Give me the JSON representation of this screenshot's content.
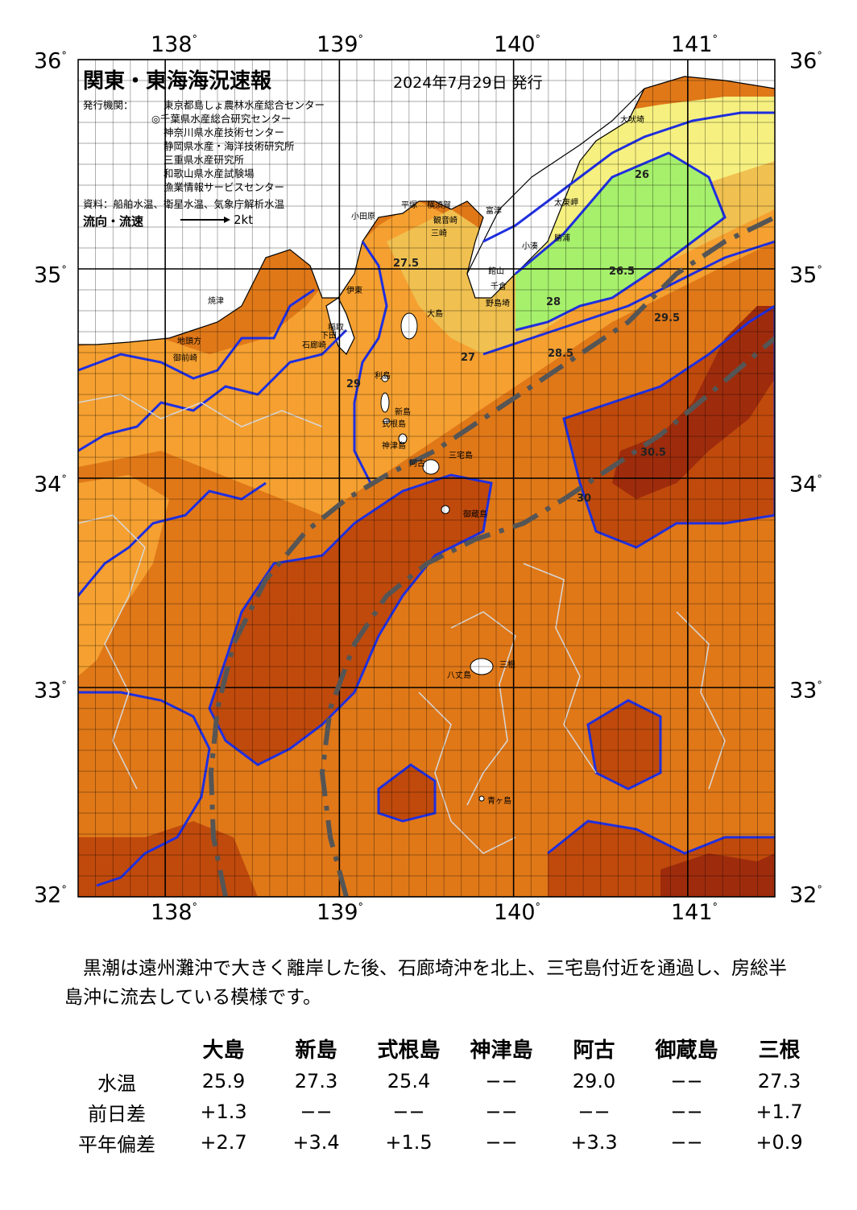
{
  "title": "関東・東海海況速報",
  "issue_date": "2024年7月29日 発行",
  "issuers_label": "発行機関：",
  "issuers": [
    "東京都島しょ農林水産総合センター",
    "◎千葉県水産総合研究センター",
    "神奈川県水産技術センター",
    "静岡県水産・海洋技術研究所",
    "三重県水産研究所",
    "和歌山県水産試験場",
    "漁業情報サービスセンター"
  ],
  "sources": "資料：船舶水温、衛星水温、気象庁解析水温",
  "legend": {
    "flow": "流向・流速",
    "speed": "2kt"
  },
  "axes": {
    "lon_ticks": [
      "138",
      "139",
      "140",
      "141"
    ],
    "lat_ticks": [
      "36",
      "35",
      "34",
      "33",
      "32"
    ],
    "degree": "°",
    "lon_range": [
      137.5,
      141.5
    ],
    "lat_range": [
      32,
      36
    ]
  },
  "colors": {
    "sea_base": "#e07818",
    "warm_core": "#c04a0c",
    "hottest": "#9e2c0c",
    "cool_coast": "#f5a030",
    "cooler": "#f0c050",
    "cold_yellow": "#f6f080",
    "green": "#a6f06c",
    "contour": "#1f2fe0",
    "half_contour": "#cccccc",
    "kuroshio_axis": "#555555"
  },
  "place_names": [
    "大吠埼",
    "太東岬",
    "勝浦",
    "小湊",
    "館山",
    "千倉",
    "野島埼",
    "富津",
    "横須賀",
    "観音崎",
    "三崎",
    "平塚",
    "小田原",
    "伊東",
    "稲取",
    "下田",
    "石廊崎",
    "焼津",
    "御前崎",
    "地頭方",
    "大島",
    "利島",
    "新島",
    "式根島",
    "神津島",
    "三宅島",
    "阿古",
    "御蔵島",
    "八丈島",
    "三根",
    "青ヶ島"
  ],
  "contour_labels": [
    "26",
    "26.5",
    "27",
    "27.5",
    "28",
    "28.5",
    "29",
    "29.5",
    "30",
    "30.5"
  ],
  "summary": "　黒潮は遠州灘沖で大きく離岸した後、石廊埼沖を北上、三宅島付近を通過し、房総半島沖に流去している模様です。",
  "observations": {
    "stations": [
      "大島",
      "新島",
      "式根島",
      "神津島",
      "阿古",
      "御蔵島",
      "三根"
    ],
    "rows": [
      {
        "label": "水温",
        "values": [
          "25.9",
          "27.3",
          "25.4",
          "−−",
          "29.0",
          "−−",
          "27.3"
        ]
      },
      {
        "label": "前日差",
        "values": [
          "+1.3",
          "−−",
          "−−",
          "−−",
          "−−",
          "−−",
          "+1.7"
        ]
      },
      {
        "label": "平年偏差",
        "values": [
          "+2.7",
          "+3.4",
          "+1.5",
          "−−",
          "+3.3",
          "−−",
          "+0.9"
        ]
      }
    ]
  }
}
